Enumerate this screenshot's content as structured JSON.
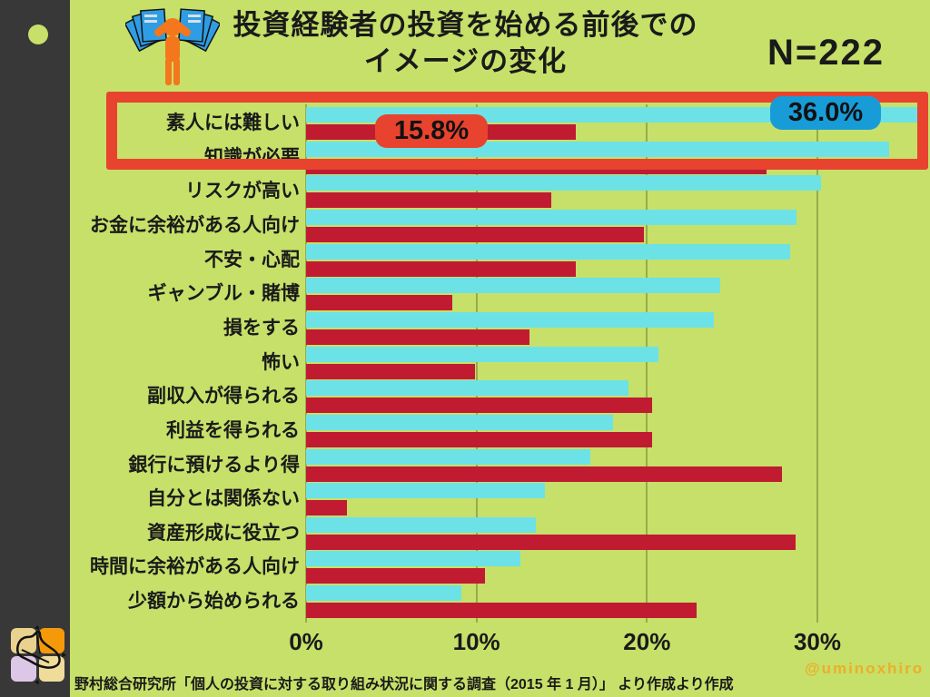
{
  "page": {
    "background_color": "#c6e069",
    "sidebar_color": "#383838",
    "watermark": "@uminoxhiro",
    "source_note": "野村総合研究所「個人の投資に対する取り組み状況に関する調査（2015 年 1 月）」 より作成より作成"
  },
  "header": {
    "title_line1": "投資経験者の投資を始める前後での",
    "title_line2": "イメージの変化",
    "sample_label": "N=222"
  },
  "annotations": {
    "before_badge": {
      "text": "36.0%",
      "color": "#189cd8"
    },
    "after_badge": {
      "text": "15.8%",
      "color": "#e8432e"
    },
    "highlight_box_color": "#e8432e"
  },
  "icons": {
    "person_money_icon": "orange pictogram person holding fans of blue banknotes",
    "shoe_logo_icon": "sneaker over four colored squares"
  },
  "chart_data": {
    "type": "bar",
    "orientation": "horizontal",
    "title": "投資経験者の投資を始める前後でのイメージの変化",
    "n": 222,
    "unit": "%",
    "grid": true,
    "legend_position": "none",
    "xlim": [
      0,
      36.6
    ],
    "x_ticks": [
      "0%",
      "10%",
      "20%",
      "30%"
    ],
    "x_tick_values": [
      0,
      10,
      20,
      30
    ],
    "categories": [
      "素人には難しい",
      "知識が必要",
      "リスクが高い",
      "お金に余裕がある人向け",
      "不安・心配",
      "ギャンブル・賭博",
      "損をする",
      "怖い",
      "副収入が得られる",
      "利益を得られる",
      "銀行に預けるより得",
      "自分とは関係ない",
      "資産形成に役立つ",
      "時間に余裕がある人向け",
      "少額から始められる"
    ],
    "series": [
      {
        "name": "before",
        "color": "#6ce2e7",
        "values": [
          36.0,
          34.2,
          30.2,
          28.8,
          28.4,
          24.3,
          23.9,
          20.7,
          18.9,
          18.0,
          16.7,
          14.0,
          13.5,
          12.6,
          9.1
        ]
      },
      {
        "name": "after",
        "color": "#c01b31",
        "values": [
          15.8,
          27.0,
          14.4,
          19.8,
          15.8,
          8.6,
          13.1,
          9.9,
          20.3,
          20.3,
          27.9,
          2.4,
          28.7,
          10.5,
          22.9
        ]
      }
    ],
    "data_labels": [
      {
        "series": "before",
        "category": "素人には難しい",
        "text": "36.0%"
      },
      {
        "series": "after",
        "category": "素人には難しい",
        "text": "15.8%"
      }
    ]
  }
}
